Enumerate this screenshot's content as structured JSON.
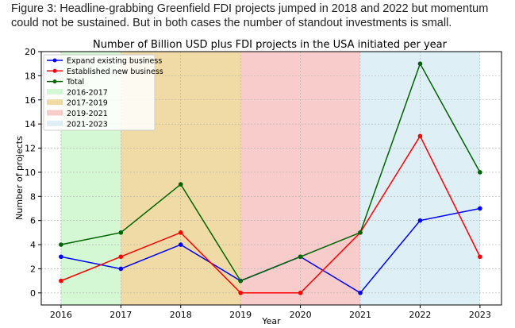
{
  "caption": "Figure 3: Headline-grabbing Greenfield FDI projects jumped in 2018 and 2022 but momentum could not be sustained. But in both cases the number of standout investments is small.",
  "chart_data": {
    "type": "line",
    "title": "Number of Billion USD plus FDI projects in the USA initiated per year",
    "xlabel": "Year",
    "ylabel": "Number of projects",
    "x": [
      2016,
      2017,
      2018,
      2019,
      2020,
      2021,
      2022,
      2023
    ],
    "xlim": [
      2015.67,
      2023.36
    ],
    "ylim": [
      -1,
      20
    ],
    "yticks": [
      0,
      2,
      4,
      6,
      8,
      10,
      12,
      14,
      16,
      18,
      20
    ],
    "grid": true,
    "legend_position": "top-left",
    "series": [
      {
        "name": "Expand existing business",
        "color": "#0000ff",
        "values": [
          3,
          2,
          4,
          1,
          3,
          0,
          6,
          7
        ]
      },
      {
        "name": "Established new business",
        "color": "#ff0000",
        "values": [
          1,
          3,
          5,
          0,
          0,
          5,
          13,
          3
        ]
      },
      {
        "name": "Total",
        "color": "#006400",
        "values": [
          4,
          5,
          9,
          1,
          3,
          5,
          19,
          10
        ]
      }
    ],
    "spans": [
      {
        "name": "2016-2017",
        "from": 2016,
        "to": 2017,
        "color": "#90ee90",
        "alpha": 0.4
      },
      {
        "name": "2017-2019",
        "from": 2017,
        "to": 2019,
        "color": "#daa520",
        "alpha": 0.4
      },
      {
        "name": "2019-2021",
        "from": 2019,
        "to": 2021,
        "color": "#f08080",
        "alpha": 0.4
      },
      {
        "name": "2021-2023",
        "from": 2021,
        "to": 2023,
        "color": "#add8e6",
        "alpha": 0.4
      }
    ]
  }
}
